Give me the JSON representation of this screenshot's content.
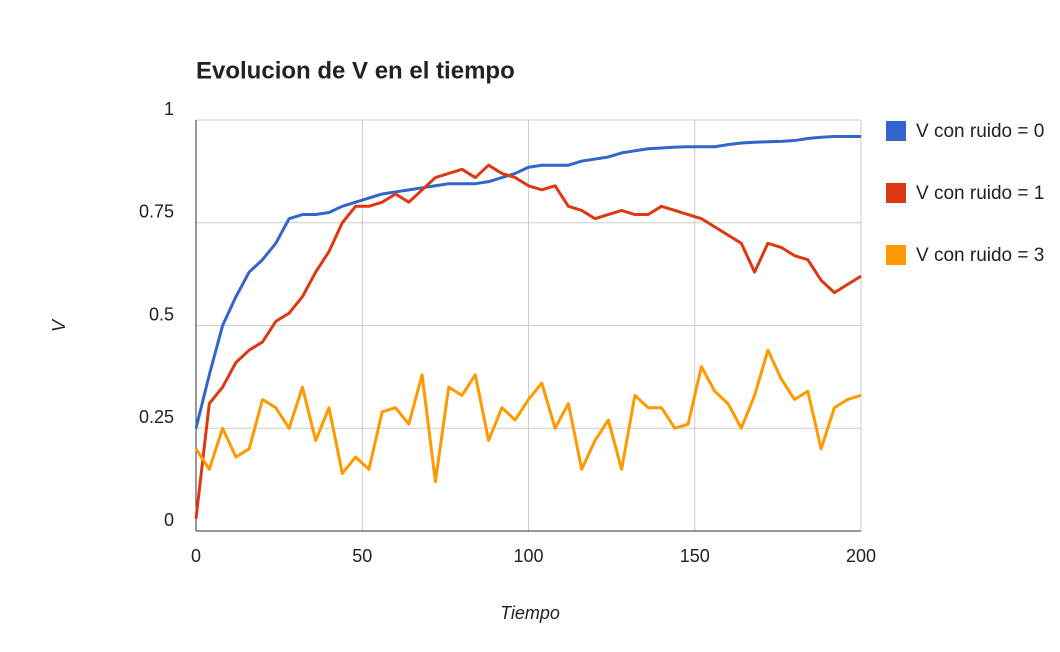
{
  "chart_data": {
    "type": "line",
    "title": "Evolucion de V en el tiempo",
    "x_label": "Tiempo",
    "y_label": "V",
    "x": [
      0,
      4,
      8,
      12,
      16,
      20,
      24,
      28,
      32,
      36,
      40,
      44,
      48,
      52,
      56,
      60,
      64,
      68,
      72,
      76,
      80,
      84,
      88,
      92,
      96,
      100,
      104,
      108,
      112,
      116,
      120,
      124,
      128,
      132,
      136,
      140,
      144,
      148,
      152,
      156,
      160,
      164,
      168,
      172,
      176,
      180,
      184,
      188,
      192,
      196,
      200
    ],
    "series": [
      {
        "name": "V con ruido = 0",
        "color": "#3366cc",
        "values": [
          0.25,
          0.38,
          0.5,
          0.57,
          0.63,
          0.66,
          0.7,
          0.76,
          0.77,
          0.77,
          0.775,
          0.79,
          0.8,
          0.81,
          0.82,
          0.825,
          0.83,
          0.835,
          0.84,
          0.845,
          0.845,
          0.845,
          0.85,
          0.86,
          0.87,
          0.885,
          0.89,
          0.89,
          0.89,
          0.9,
          0.905,
          0.91,
          0.92,
          0.925,
          0.93,
          0.932,
          0.934,
          0.935,
          0.935,
          0.935,
          0.94,
          0.944,
          0.946,
          0.947,
          0.948,
          0.95,
          0.955,
          0.958,
          0.96,
          0.96,
          0.96
        ]
      },
      {
        "name": "V con ruido = 1",
        "color": "#dc3912",
        "values": [
          0.03,
          0.31,
          0.35,
          0.41,
          0.44,
          0.46,
          0.51,
          0.53,
          0.57,
          0.63,
          0.68,
          0.75,
          0.79,
          0.79,
          0.8,
          0.82,
          0.8,
          0.83,
          0.86,
          0.87,
          0.88,
          0.86,
          0.89,
          0.87,
          0.86,
          0.84,
          0.83,
          0.84,
          0.79,
          0.78,
          0.76,
          0.77,
          0.78,
          0.77,
          0.77,
          0.79,
          0.78,
          0.77,
          0.76,
          0.74,
          0.72,
          0.7,
          0.63,
          0.7,
          0.69,
          0.67,
          0.66,
          0.61,
          0.58,
          0.6,
          0.62
        ]
      },
      {
        "name": "V con ruido = 3",
        "color": "#ff9900",
        "values": [
          0.2,
          0.15,
          0.25,
          0.18,
          0.2,
          0.32,
          0.3,
          0.25,
          0.35,
          0.22,
          0.3,
          0.14,
          0.18,
          0.15,
          0.29,
          0.3,
          0.26,
          0.38,
          0.12,
          0.35,
          0.33,
          0.38,
          0.22,
          0.3,
          0.27,
          0.32,
          0.36,
          0.25,
          0.31,
          0.15,
          0.22,
          0.27,
          0.15,
          0.33,
          0.3,
          0.3,
          0.25,
          0.26,
          0.4,
          0.34,
          0.31,
          0.25,
          0.33,
          0.44,
          0.37,
          0.32,
          0.34,
          0.2,
          0.3,
          0.32,
          0.33
        ]
      }
    ],
    "xlim": [
      0,
      200
    ],
    "xticks": [
      0,
      50,
      100,
      150,
      200
    ],
    "ylim": [
      0,
      1
    ],
    "yticks": [
      0,
      0.25,
      0.5,
      0.75,
      1
    ],
    "grid": true
  }
}
